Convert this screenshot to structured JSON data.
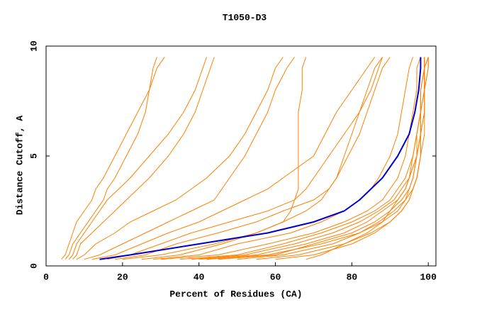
{
  "chart_data": {
    "type": "line",
    "title": "T1050-D3",
    "x_label": "Percent of Residues (CA)",
    "y_label": "Distance Cutoff, A",
    "xlim": [
      0,
      102
    ],
    "ylim": [
      0,
      10
    ],
    "xticks": [
      0,
      20,
      40,
      60,
      80,
      100
    ],
    "yticks": [
      0,
      5,
      10
    ],
    "y": [
      0.3,
      0.5,
      1,
      1.5,
      2,
      2.5,
      3,
      3.5,
      4,
      5,
      6,
      7,
      8,
      9,
      9.5
    ],
    "series": [
      {
        "color": "#ff8000",
        "x": [
          4,
          5,
          6,
          7,
          8,
          10,
          12,
          13,
          15,
          18,
          21,
          24,
          27,
          28,
          29
        ]
      },
      {
        "color": "#ff8000",
        "x": [
          5,
          6,
          7,
          9,
          11,
          13,
          15,
          16,
          18,
          21,
          24,
          26,
          27,
          29,
          31
        ]
      },
      {
        "color": "#ff8000",
        "x": [
          6,
          7,
          8,
          10,
          12,
          14,
          16,
          19,
          22,
          27,
          32,
          36,
          39,
          41,
          42
        ]
      },
      {
        "color": "#ff8000",
        "x": [
          7,
          8,
          9,
          12,
          15,
          18,
          21,
          24,
          27,
          32,
          36,
          39,
          41,
          43,
          44
        ]
      },
      {
        "color": "#ff8000",
        "x": [
          8,
          10,
          13,
          18,
          22,
          28,
          34,
          38,
          42,
          48,
          52,
          55,
          58,
          60,
          62
        ]
      },
      {
        "color": "#ff8000",
        "x": [
          10,
          14,
          20,
          26,
          32,
          38,
          44,
          46,
          48,
          52,
          55,
          58,
          60,
          63,
          65
        ]
      },
      {
        "color": "#ff8000",
        "x": [
          12,
          18,
          25,
          32,
          40,
          46,
          52,
          58,
          62,
          70,
          73,
          76,
          80,
          84,
          86
        ]
      },
      {
        "color": "#ff8000",
        "x": [
          16,
          22,
          30,
          38,
          48,
          58,
          65,
          68,
          70,
          74,
          78,
          82,
          85,
          87,
          88
        ]
      },
      {
        "color": "#ff8000",
        "x": [
          18,
          26,
          34,
          45,
          55,
          62,
          70,
          74,
          76,
          79,
          82,
          84,
          86,
          88,
          90
        ]
      },
      {
        "color": "#ff8000",
        "x": [
          20,
          30,
          44,
          55,
          62,
          68,
          72,
          74,
          76,
          78,
          80,
          82,
          84,
          86,
          88
        ]
      },
      {
        "color": "#ff8000",
        "x": [
          28,
          40,
          50,
          64,
          72,
          78,
          82,
          85,
          87,
          90,
          92,
          93,
          94,
          95,
          96
        ]
      },
      {
        "color": "#ff8000",
        "x": [
          30,
          45,
          58,
          70,
          78,
          84,
          88,
          90,
          92,
          94,
          95,
          96,
          97,
          97,
          98
        ]
      },
      {
        "color": "#ff8000",
        "x": [
          35,
          50,
          62,
          72,
          80,
          86,
          90,
          92,
          94,
          96,
          97,
          98,
          98,
          99,
          99
        ]
      },
      {
        "color": "#ff8000",
        "x": [
          40,
          55,
          68,
          78,
          84,
          88,
          92,
          94,
          95,
          97,
          98,
          98,
          99,
          99,
          99
        ]
      },
      {
        "color": "#ff8000",
        "x": [
          45,
          60,
          70,
          80,
          86,
          90,
          93,
          95,
          96,
          97,
          98,
          98,
          99,
          99,
          100
        ]
      },
      {
        "color": "#ff8000",
        "x": [
          50,
          62,
          75,
          82,
          88,
          92,
          94,
          96,
          97,
          98,
          98,
          99,
          99,
          99,
          100
        ]
      },
      {
        "color": "#ff8000",
        "x": [
          55,
          66,
          78,
          85,
          90,
          93,
          95,
          96,
          97,
          98,
          99,
          99,
          99,
          100,
          100
        ]
      },
      {
        "color": "#ff8000",
        "x": [
          42,
          58,
          72,
          82,
          87,
          91,
          94,
          95,
          96,
          97,
          98,
          98,
          99,
          99,
          99
        ]
      },
      {
        "color": "#ff8000",
        "x": [
          68,
          72,
          78,
          84,
          88,
          90,
          92,
          94,
          95,
          96,
          97,
          98,
          98,
          99,
          99
        ]
      },
      {
        "color": "#ff8000",
        "x": [
          25,
          35,
          46,
          55,
          62,
          64,
          65,
          66,
          66,
          66,
          66,
          66,
          67,
          67,
          68
        ]
      },
      {
        "color": "#ff8000",
        "x": [
          60,
          70,
          80,
          86,
          90,
          93,
          95,
          96,
          97,
          98,
          98,
          99,
          99,
          100,
          100
        ]
      },
      {
        "color": "#ff8000",
        "x": [
          38,
          52,
          65,
          75,
          82,
          87,
          91,
          93,
          95,
          97,
          97,
          98,
          98,
          99,
          99
        ]
      },
      {
        "color": "#0000cc",
        "x": [
          14,
          22,
          40,
          58,
          70,
          78,
          82,
          85,
          88,
          92,
          95,
          96.5,
          97.5,
          98,
          98
        ]
      }
    ]
  }
}
